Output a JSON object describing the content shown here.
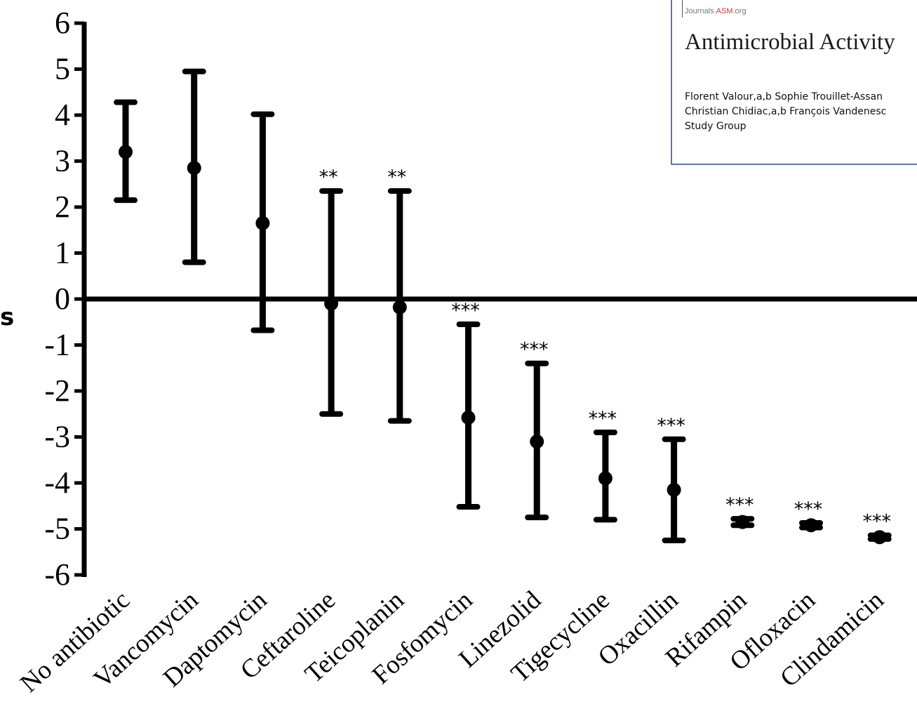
{
  "inset": {
    "journals_prefix": "Journals.",
    "journals_asm": "ASM",
    "journals_suffix": ".org",
    "title": "Antimicrobial Activity",
    "authors_line1": "Florent Valour,a,b Sophie Trouillet-Assan",
    "authors_line2": "Christian Chidiac,a,b François Vandenesc",
    "authors_line3": "Study Group"
  },
  "left_fragment": "s",
  "chart_data": {
    "type": "scatter",
    "title": "",
    "xlabel": "",
    "ylabel": "",
    "ylim": [
      -6,
      6
    ],
    "yticks": [
      "6",
      "5",
      "4",
      "3",
      "2",
      "1",
      "0",
      "-1",
      "-2",
      "-3",
      "-4",
      "-5",
      "-6"
    ],
    "categories": [
      "No antibiotic",
      "Vancomycin",
      "Daptomycin",
      "Ceftaroline",
      "Teicoplanin",
      "Fosfomycin",
      "Linezolid",
      "Tigecycline",
      "Oxacillin",
      "Rifampin",
      "Ofloxacin",
      "Clindamicin"
    ],
    "series": [
      {
        "values": [
          3.2,
          2.85,
          1.65,
          -0.1,
          -0.18,
          -2.58,
          -3.1,
          -3.9,
          -4.15,
          -4.85,
          -4.92,
          -5.18
        ],
        "error_low": [
          2.15,
          0.8,
          -0.68,
          -2.5,
          -2.65,
          -4.52,
          -4.75,
          -4.8,
          -5.25,
          -4.92,
          -4.97,
          -5.22
        ],
        "error_high": [
          4.28,
          4.95,
          4.02,
          2.35,
          2.35,
          -0.55,
          -1.4,
          -2.9,
          -3.05,
          -4.78,
          -4.87,
          -5.14
        ]
      }
    ],
    "significance": [
      "",
      "",
      "",
      "**",
      "**",
      "***",
      "***",
      "***",
      "***",
      "***",
      "***",
      "***"
    ],
    "grid": false,
    "legend": "none"
  }
}
